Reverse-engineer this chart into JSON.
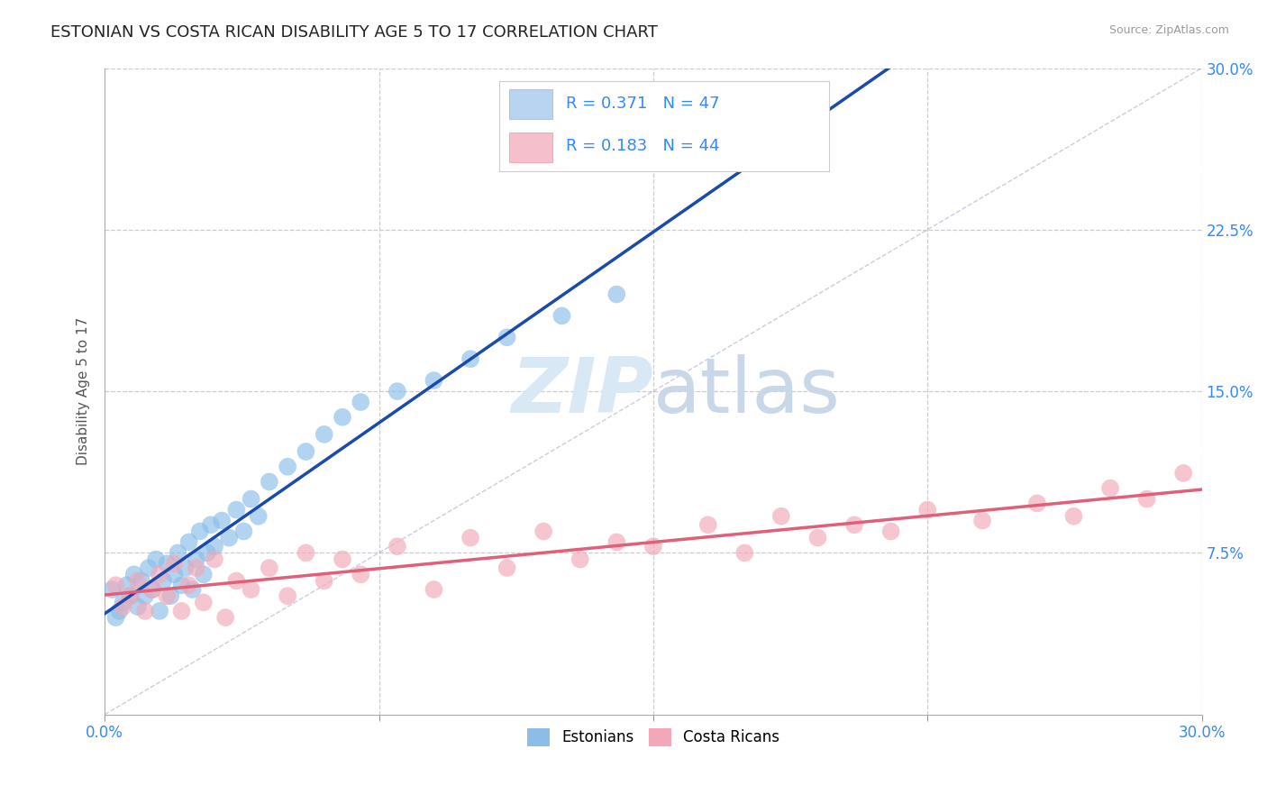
{
  "title": "ESTONIAN VS COSTA RICAN DISABILITY AGE 5 TO 17 CORRELATION CHART",
  "source": "Source: ZipAtlas.com",
  "ylabel": "Disability Age 5 to 17",
  "xlim": [
    0.0,
    0.3
  ],
  "ylim": [
    0.0,
    0.3
  ],
  "xticks": [
    0.0,
    0.075,
    0.15,
    0.225,
    0.3
  ],
  "yticks": [
    0.0,
    0.075,
    0.15,
    0.225,
    0.3
  ],
  "xtick_labels_show": [
    "0.0%",
    "30.0%"
  ],
  "xtick_positions_show": [
    0.0,
    0.3
  ],
  "ytick_labels": [
    "7.5%",
    "15.0%",
    "22.5%",
    "30.0%"
  ],
  "ytick_positions": [
    0.075,
    0.15,
    0.225,
    0.3
  ],
  "r_estonian": 0.371,
  "n_estonian": 47,
  "r_costarican": 0.183,
  "n_costarican": 44,
  "estonian_color": "#8bbde8",
  "costarican_color": "#f2a8b8",
  "estonian_line_color": "#1a4aaa",
  "costarican_line_color": "#e0607a",
  "legend_box_color_estonian": "#b8d4f0",
  "legend_box_color_costarican": "#f5c0cc",
  "title_fontsize": 13,
  "axis_label_fontsize": 11,
  "tick_fontsize": 12,
  "background_color": "#ffffff",
  "watermark_color": "#d8e8f4",
  "estonian_x": [
    0.002,
    0.003,
    0.004,
    0.005,
    0.006,
    0.007,
    0.008,
    0.009,
    0.01,
    0.011,
    0.012,
    0.013,
    0.014,
    0.015,
    0.016,
    0.017,
    0.018,
    0.019,
    0.02,
    0.021,
    0.022,
    0.023,
    0.024,
    0.025,
    0.026,
    0.027,
    0.028,
    0.029,
    0.03,
    0.032,
    0.034,
    0.036,
    0.038,
    0.04,
    0.042,
    0.045,
    0.05,
    0.055,
    0.06,
    0.065,
    0.07,
    0.08,
    0.09,
    0.1,
    0.11,
    0.125,
    0.14
  ],
  "estonian_y": [
    0.058,
    0.045,
    0.048,
    0.052,
    0.06,
    0.055,
    0.065,
    0.05,
    0.062,
    0.055,
    0.068,
    0.058,
    0.072,
    0.048,
    0.062,
    0.07,
    0.055,
    0.065,
    0.075,
    0.06,
    0.068,
    0.08,
    0.058,
    0.072,
    0.085,
    0.065,
    0.075,
    0.088,
    0.078,
    0.09,
    0.082,
    0.095,
    0.085,
    0.1,
    0.092,
    0.108,
    0.115,
    0.122,
    0.13,
    0.138,
    0.145,
    0.15,
    0.155,
    0.165,
    0.175,
    0.185,
    0.195
  ],
  "costarican_x": [
    0.003,
    0.005,
    0.007,
    0.009,
    0.011,
    0.013,
    0.015,
    0.017,
    0.019,
    0.021,
    0.023,
    0.025,
    0.027,
    0.03,
    0.033,
    0.036,
    0.04,
    0.045,
    0.05,
    0.055,
    0.06,
    0.065,
    0.07,
    0.08,
    0.09,
    0.1,
    0.11,
    0.12,
    0.13,
    0.14,
    0.15,
    0.165,
    0.175,
    0.185,
    0.195,
    0.205,
    0.215,
    0.225,
    0.24,
    0.255,
    0.265,
    0.275,
    0.285,
    0.295
  ],
  "costarican_y": [
    0.06,
    0.05,
    0.055,
    0.062,
    0.048,
    0.058,
    0.065,
    0.055,
    0.07,
    0.048,
    0.06,
    0.068,
    0.052,
    0.072,
    0.045,
    0.062,
    0.058,
    0.068,
    0.055,
    0.075,
    0.062,
    0.072,
    0.065,
    0.078,
    0.058,
    0.082,
    0.068,
    0.085,
    0.072,
    0.08,
    0.078,
    0.088,
    0.075,
    0.092,
    0.082,
    0.088,
    0.085,
    0.095,
    0.09,
    0.098,
    0.092,
    0.105,
    0.1,
    0.112
  ]
}
